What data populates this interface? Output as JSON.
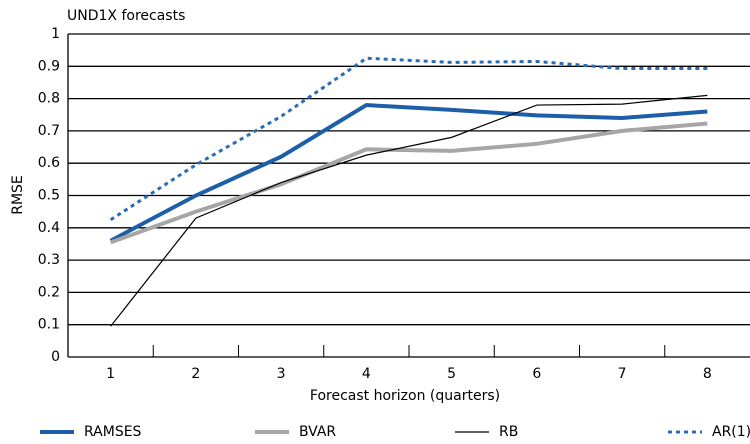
{
  "chart_data": {
    "type": "line",
    "title": "UND1X forecasts",
    "x_label": "Forecast horizon (quarters)",
    "y_label": "RMSE",
    "categories": [
      "1",
      "2",
      "3",
      "4",
      "5",
      "6",
      "7",
      "8"
    ],
    "ylim": [
      0,
      1
    ],
    "yticks": [
      0,
      0.1,
      0.2,
      0.3,
      0.4,
      0.5,
      0.6,
      0.7,
      0.8,
      0.9,
      1
    ],
    "grid": true,
    "legend": "bottom",
    "series": [
      {
        "name": "RAMSES",
        "color": "#1d5ea8",
        "width": 4,
        "style": "solid",
        "values": [
          0.36,
          0.5,
          0.62,
          0.78,
          0.765,
          0.748,
          0.74,
          0.76
        ]
      },
      {
        "name": "BVAR",
        "color": "#a6a6a6",
        "width": 4,
        "style": "solid",
        "values": [
          0.355,
          0.45,
          0.535,
          0.643,
          0.638,
          0.66,
          0.7,
          0.723
        ]
      },
      {
        "name": "RB",
        "color": "#000000",
        "width": 1.2,
        "style": "solid",
        "values": [
          0.095,
          0.43,
          0.54,
          0.625,
          0.68,
          0.78,
          0.783,
          0.81
        ]
      },
      {
        "name": "AR(1)",
        "color": "#2a6cb5",
        "width": 3,
        "style": "dotted",
        "values": [
          0.425,
          0.595,
          0.745,
          0.925,
          0.912,
          0.915,
          0.893,
          0.893
        ]
      }
    ]
  }
}
